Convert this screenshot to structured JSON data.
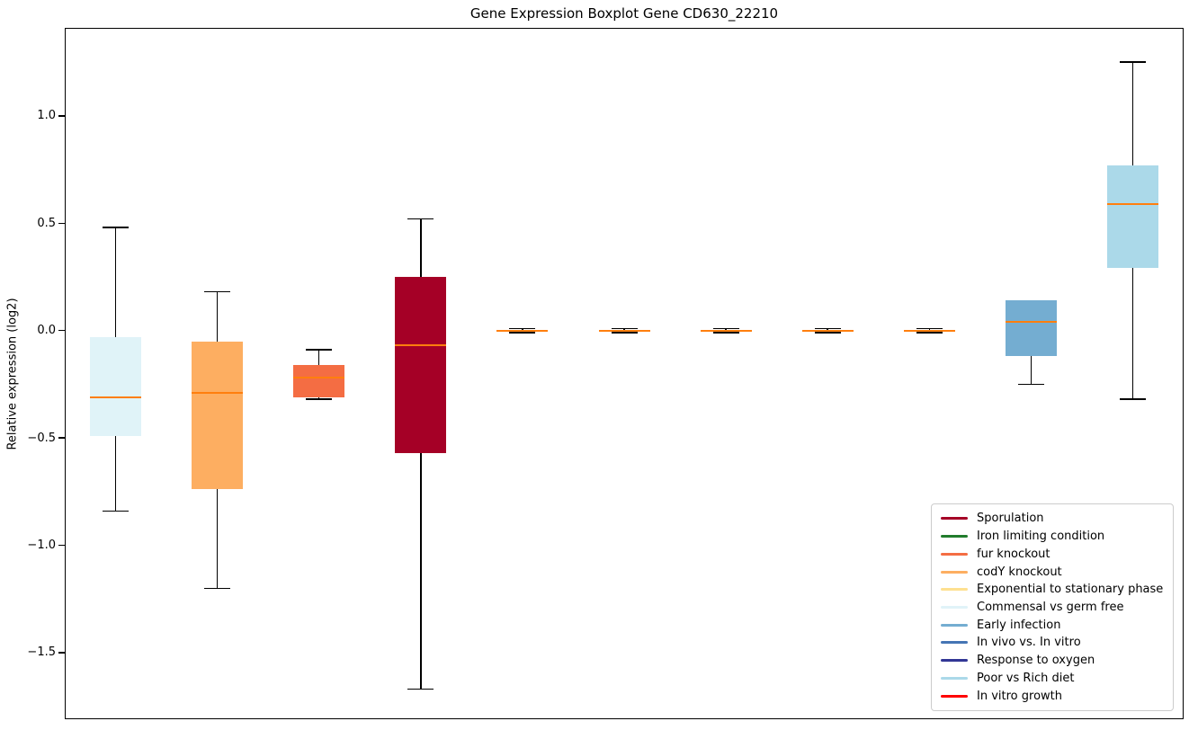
{
  "chart_data": {
    "type": "boxplot",
    "title": "Gene Expression Boxplot Gene CD630_22210",
    "xlabel": "",
    "ylabel": "Relative expression (log2)",
    "ylim": [
      -1.81,
      1.41
    ],
    "grid": false,
    "median_color": "#ff7f0e",
    "whisker_color": "#000000",
    "yticks": [
      {
        "label": "1.0",
        "value": 1.0
      },
      {
        "label": "0.5",
        "value": 0.5
      },
      {
        "label": "0.0",
        "value": 0.0
      },
      {
        "label": "−0.5",
        "value": -0.5
      },
      {
        "label": "−1.0",
        "value": -1.0
      },
      {
        "label": "−1.5",
        "value": -1.5
      }
    ],
    "series": [
      {
        "label": "Commensal vs germ free",
        "color": "#e0f3f8",
        "whislo": -0.84,
        "q1": -0.49,
        "med": -0.31,
        "q3": -0.03,
        "whishi": 0.48
      },
      {
        "label": "codY knockout",
        "color": "#fdae61",
        "whislo": -1.2,
        "q1": -0.74,
        "med": -0.29,
        "q3": -0.05,
        "whishi": 0.18
      },
      {
        "label": "fur knockout",
        "color": "#f46d43",
        "whislo": -0.32,
        "q1": -0.31,
        "med": -0.22,
        "q3": -0.16,
        "whishi": -0.09
      },
      {
        "label": "Sporulation",
        "color": "#a50026",
        "whislo": -1.67,
        "q1": -0.57,
        "med": -0.07,
        "q3": 0.25,
        "whishi": 0.52
      },
      {
        "label": "Exponential to stationary phase",
        "color": "#fee090",
        "whislo": -0.01,
        "q1": -0.005,
        "med": 0.0,
        "q3": 0.005,
        "whishi": 0.01
      },
      {
        "label": "Iron limiting condition",
        "color": "#217c2c",
        "whislo": -0.01,
        "q1": -0.005,
        "med": 0.0,
        "q3": 0.005,
        "whishi": 0.01
      },
      {
        "label": "In vitro growth",
        "color": "#ff0000",
        "whislo": -0.01,
        "q1": -0.005,
        "med": 0.0,
        "q3": 0.005,
        "whishi": 0.01
      },
      {
        "label": "Response to oxygen",
        "color": "#313695",
        "whislo": -0.01,
        "q1": -0.005,
        "med": 0.0,
        "q3": 0.005,
        "whishi": 0.01
      },
      {
        "label": "In vivo vs. In vitro",
        "color": "#4575b4",
        "whislo": -0.01,
        "q1": -0.005,
        "med": 0.0,
        "q3": 0.005,
        "whishi": 0.01
      },
      {
        "label": "Early infection",
        "color": "#74add1",
        "whislo": -0.25,
        "q1": -0.12,
        "med": 0.04,
        "q3": 0.14,
        "whishi": 0.14
      },
      {
        "label": "Poor vs Rich diet",
        "color": "#abd9e9",
        "whislo": -0.32,
        "q1": 0.29,
        "med": 0.59,
        "q3": 0.77,
        "whishi": 1.25
      }
    ],
    "legend": {
      "position": "lower right",
      "entries": [
        {
          "label": "Sporulation",
          "color": "#a50026"
        },
        {
          "label": "Iron limiting condition",
          "color": "#217c2c"
        },
        {
          "label": "fur knockout",
          "color": "#f46d43"
        },
        {
          "label": "codY knockout",
          "color": "#fdae61"
        },
        {
          "label": "Exponential to stationary phase",
          "color": "#fee090"
        },
        {
          "label": "Commensal vs germ free",
          "color": "#e0f3f8"
        },
        {
          "label": "Early infection",
          "color": "#74add1"
        },
        {
          "label": "In vivo vs. In vitro",
          "color": "#4575b4"
        },
        {
          "label": "Response to oxygen",
          "color": "#313695"
        },
        {
          "label": "Poor vs Rich diet",
          "color": "#abd9e9"
        },
        {
          "label": "In vitro growth",
          "color": "#ff0000"
        }
      ]
    }
  }
}
